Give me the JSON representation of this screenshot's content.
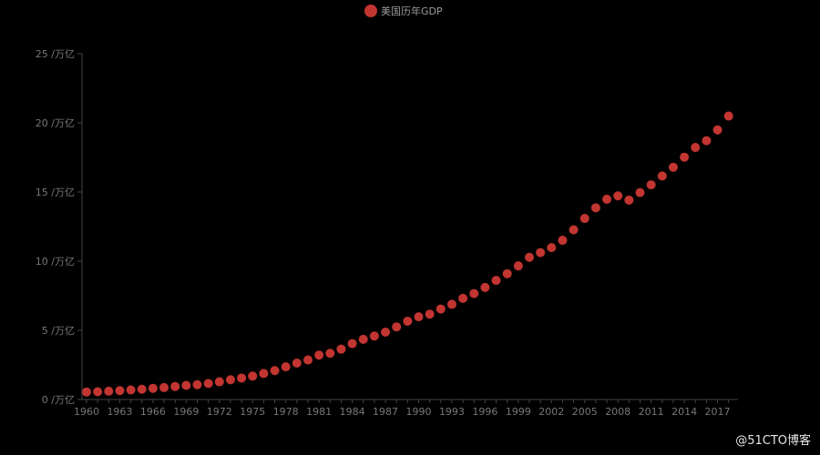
{
  "colors": {
    "background": "#000000",
    "point": "#c23531",
    "axis": "#444444",
    "tick_text": "#777777"
  },
  "legend": {
    "label": "美国历年GDP",
    "swatch_color": "#c23531"
  },
  "watermark": "@51CTO博客",
  "chart_data": {
    "type": "scatter",
    "title": "",
    "xlabel": "",
    "ylabel": "",
    "legend_position": "top-center",
    "grid": false,
    "ylim": [
      0,
      25
    ],
    "y_tick_step": 5,
    "y_tick_labels": [
      "0 /万亿",
      "5 /万亿",
      "10 /万亿",
      "15 /万亿",
      "20 /万亿",
      "25 /万亿"
    ],
    "x_tick_labels": [
      "1960",
      "1963",
      "1966",
      "1969",
      "1972",
      "1975",
      "1978",
      "1981",
      "1984",
      "1987",
      "1990",
      "1993",
      "1996",
      "1999",
      "2002",
      "2005",
      "2008",
      "2011",
      "2014",
      "2017"
    ],
    "series": [
      {
        "name": "美国历年GDP",
        "x": [
          1960,
          1961,
          1962,
          1963,
          1964,
          1965,
          1966,
          1967,
          1968,
          1969,
          1970,
          1971,
          1972,
          1973,
          1974,
          1975,
          1976,
          1977,
          1978,
          1979,
          1980,
          1981,
          1982,
          1983,
          1984,
          1985,
          1986,
          1987,
          1988,
          1989,
          1990,
          1991,
          1992,
          1993,
          1994,
          1995,
          1996,
          1997,
          1998,
          1999,
          2000,
          2001,
          2002,
          2003,
          2004,
          2005,
          2006,
          2007,
          2008,
          2009,
          2010,
          2011,
          2012,
          2013,
          2014,
          2015,
          2016,
          2017,
          2018
        ],
        "values": [
          0.54,
          0.56,
          0.6,
          0.64,
          0.69,
          0.74,
          0.81,
          0.86,
          0.94,
          1.02,
          1.07,
          1.16,
          1.28,
          1.43,
          1.55,
          1.69,
          1.88,
          2.09,
          2.36,
          2.63,
          2.86,
          3.21,
          3.34,
          3.64,
          4.04,
          4.35,
          4.59,
          4.87,
          5.25,
          5.66,
          5.98,
          6.17,
          6.54,
          6.88,
          7.31,
          7.66,
          8.1,
          8.61,
          9.09,
          9.66,
          10.28,
          10.62,
          10.98,
          11.51,
          12.27,
          13.09,
          13.86,
          14.48,
          14.72,
          14.42,
          14.96,
          15.52,
          16.16,
          16.79,
          17.52,
          18.22,
          18.71,
          19.49,
          20.49
        ]
      }
    ]
  }
}
